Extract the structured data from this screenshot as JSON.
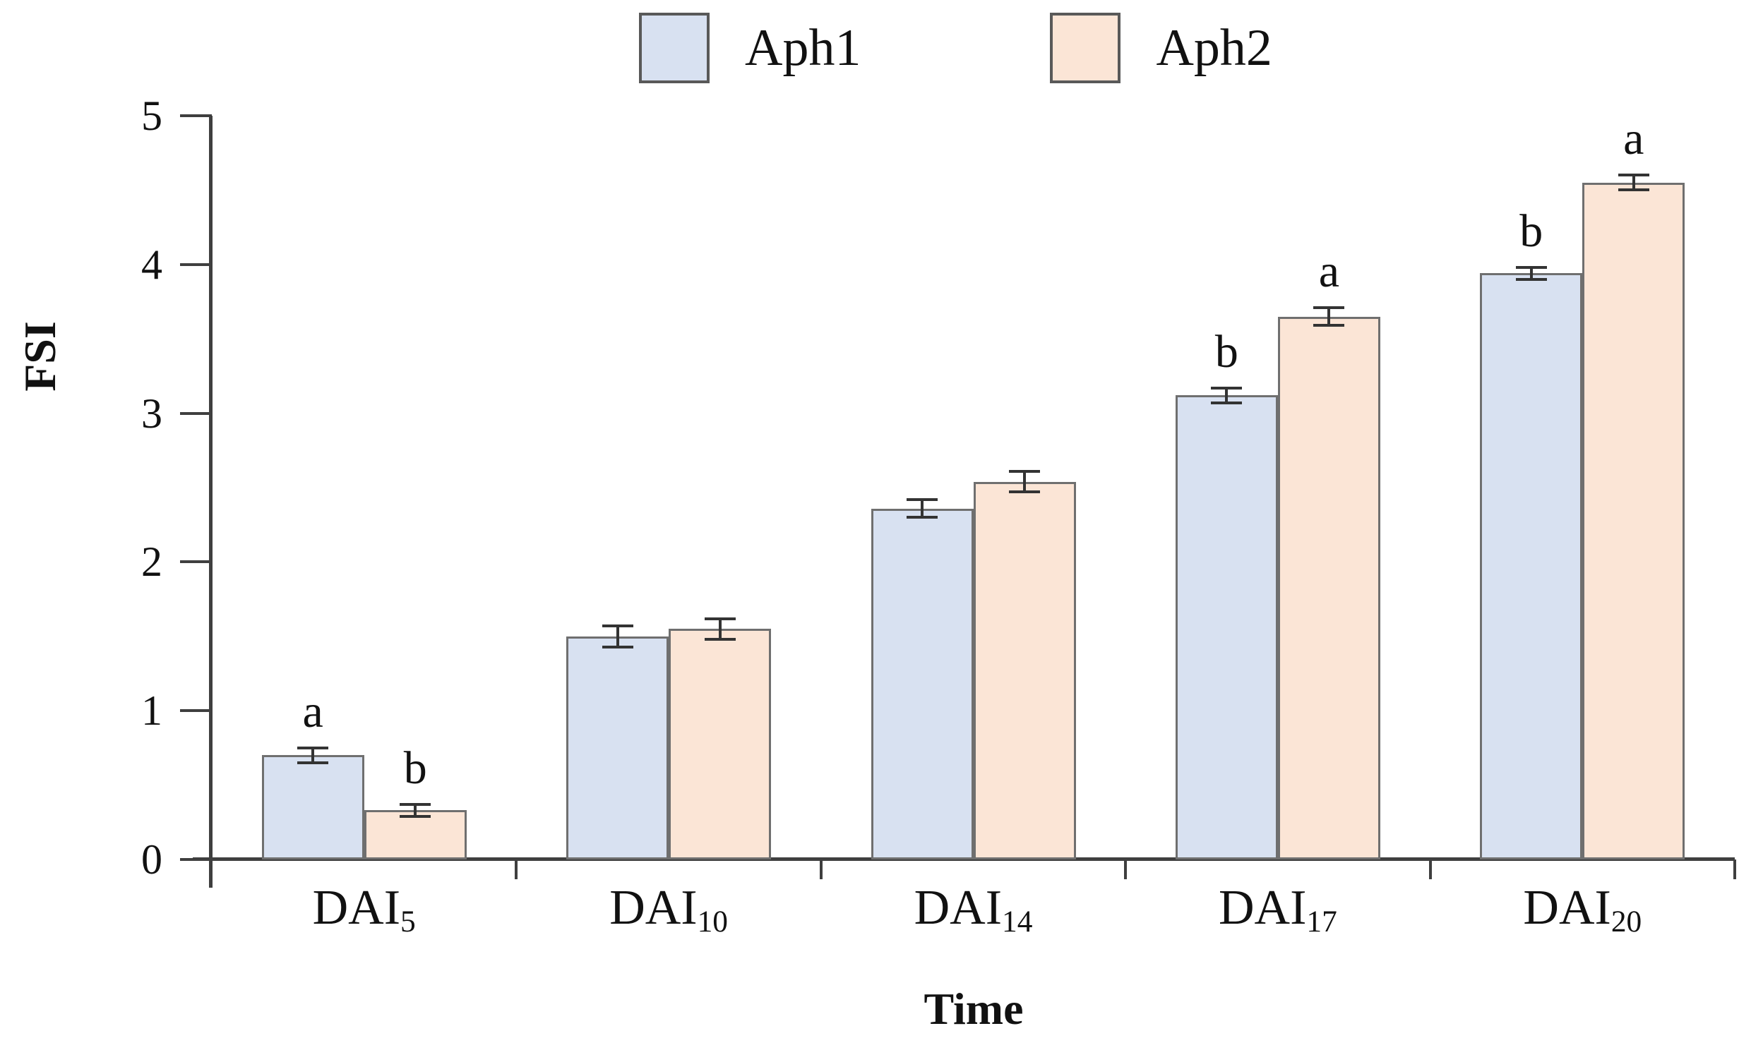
{
  "chart_data": {
    "type": "bar",
    "title": "",
    "xlabel": "Time",
    "ylabel": "FSI",
    "ylim": [
      0,
      5
    ],
    "yticks": [
      0,
      1,
      2,
      3,
      4,
      5
    ],
    "grid": false,
    "legend_position": "top-center",
    "categories": [
      "DAI5",
      "DAI10",
      "DAI14",
      "DAI17",
      "DAI20"
    ],
    "category_labels": [
      {
        "base": "DAI",
        "sub": "5"
      },
      {
        "base": "DAI",
        "sub": "10"
      },
      {
        "base": "DAI",
        "sub": "14"
      },
      {
        "base": "DAI",
        "sub": "17"
      },
      {
        "base": "DAI",
        "sub": "20"
      }
    ],
    "series": [
      {
        "name": "Aph1",
        "fill_color": "#D8E1F1",
        "border_color": "#6F6F6F",
        "values": [
          0.7,
          1.5,
          2.36,
          3.12,
          3.94
        ],
        "errors": [
          0.05,
          0.07,
          0.06,
          0.05,
          0.04
        ],
        "sig_letters": [
          "a",
          "",
          "",
          "b",
          "b"
        ]
      },
      {
        "name": "Aph2",
        "fill_color": "#FBE5D6",
        "border_color": "#6F6F6F",
        "values": [
          0.33,
          1.55,
          2.54,
          3.65,
          4.55
        ],
        "errors": [
          0.04,
          0.07,
          0.07,
          0.06,
          0.05
        ],
        "sig_letters": [
          "b",
          "",
          "",
          "a",
          "a"
        ]
      }
    ],
    "error_bar_color": "#333333",
    "axis_color": "#3F3F3F",
    "text_color": "#111111"
  }
}
